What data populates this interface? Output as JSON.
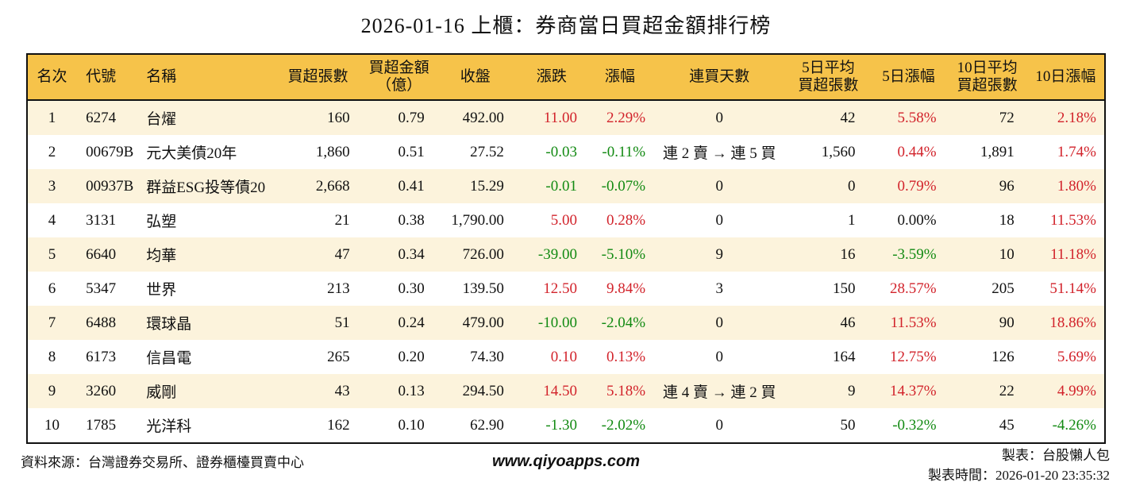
{
  "chart_data": {
    "type": "table",
    "title": "2026-01-16 上櫃：券商當日買超金額排行榜",
    "columns": [
      "名次",
      "代號",
      "名稱",
      "買超張數",
      "買超金額\n（億）",
      "收盤",
      "漲跌",
      "漲幅",
      "連買天數",
      "5日平均\n買超張數",
      "5日漲幅",
      "10日平均\n買超張數",
      "10日漲幅"
    ],
    "rows": [
      [
        "1",
        "6274",
        "台燿",
        "160",
        "0.79",
        "492.00",
        "11.00",
        "2.29%",
        "0",
        "42",
        "5.58%",
        "72",
        "2.18%"
      ],
      [
        "2",
        "00679B",
        "元大美債20年",
        "1,860",
        "0.51",
        "27.52",
        "-0.03",
        "-0.11%",
        "連 2 賣 → 連 5 買",
        "1,560",
        "0.44%",
        "1,891",
        "1.74%"
      ],
      [
        "3",
        "00937B",
        "群益ESG投等債20",
        "2,668",
        "0.41",
        "15.29",
        "-0.01",
        "-0.07%",
        "0",
        "0",
        "0.79%",
        "96",
        "1.80%"
      ],
      [
        "4",
        "3131",
        "弘塑",
        "21",
        "0.38",
        "1,790.00",
        "5.00",
        "0.28%",
        "0",
        "1",
        "0.00%",
        "18",
        "11.53%"
      ],
      [
        "5",
        "6640",
        "均華",
        "47",
        "0.34",
        "726.00",
        "-39.00",
        "-5.10%",
        "9",
        "16",
        "-3.59%",
        "10",
        "11.18%"
      ],
      [
        "6",
        "5347",
        "世界",
        "213",
        "0.30",
        "139.50",
        "12.50",
        "9.84%",
        "3",
        "150",
        "28.57%",
        "205",
        "51.14%"
      ],
      [
        "7",
        "6488",
        "環球晶",
        "51",
        "0.24",
        "479.00",
        "-10.00",
        "-2.04%",
        "0",
        "46",
        "11.53%",
        "90",
        "18.86%"
      ],
      [
        "8",
        "6173",
        "信昌電",
        "265",
        "0.20",
        "74.30",
        "0.10",
        "0.13%",
        "0",
        "164",
        "12.75%",
        "126",
        "5.69%"
      ],
      [
        "9",
        "3260",
        "威剛",
        "43",
        "0.13",
        "294.50",
        "14.50",
        "5.18%",
        "連 4 賣 → 連 2 買",
        "9",
        "14.37%",
        "22",
        "4.99%"
      ],
      [
        "10",
        "1785",
        "光洋科",
        "162",
        "0.10",
        "62.90",
        "-1.30",
        "-2.02%",
        "0",
        "50",
        "-0.32%",
        "45",
        "-4.26%"
      ]
    ]
  },
  "footer": {
    "source": "資料來源：台灣證券交易所、證券櫃檯買賣中心",
    "website": "www.qiyoapps.com",
    "author": "製表：台股懶人包",
    "generated_at": "製表時間：2026-01-20 23:35:32"
  },
  "colors": {
    "up_red": "#d2232b",
    "down_green": "#128a12",
    "header_bg": "#f6c34a",
    "alt_row_bg": "#fcf3dc",
    "border": "#111111"
  }
}
